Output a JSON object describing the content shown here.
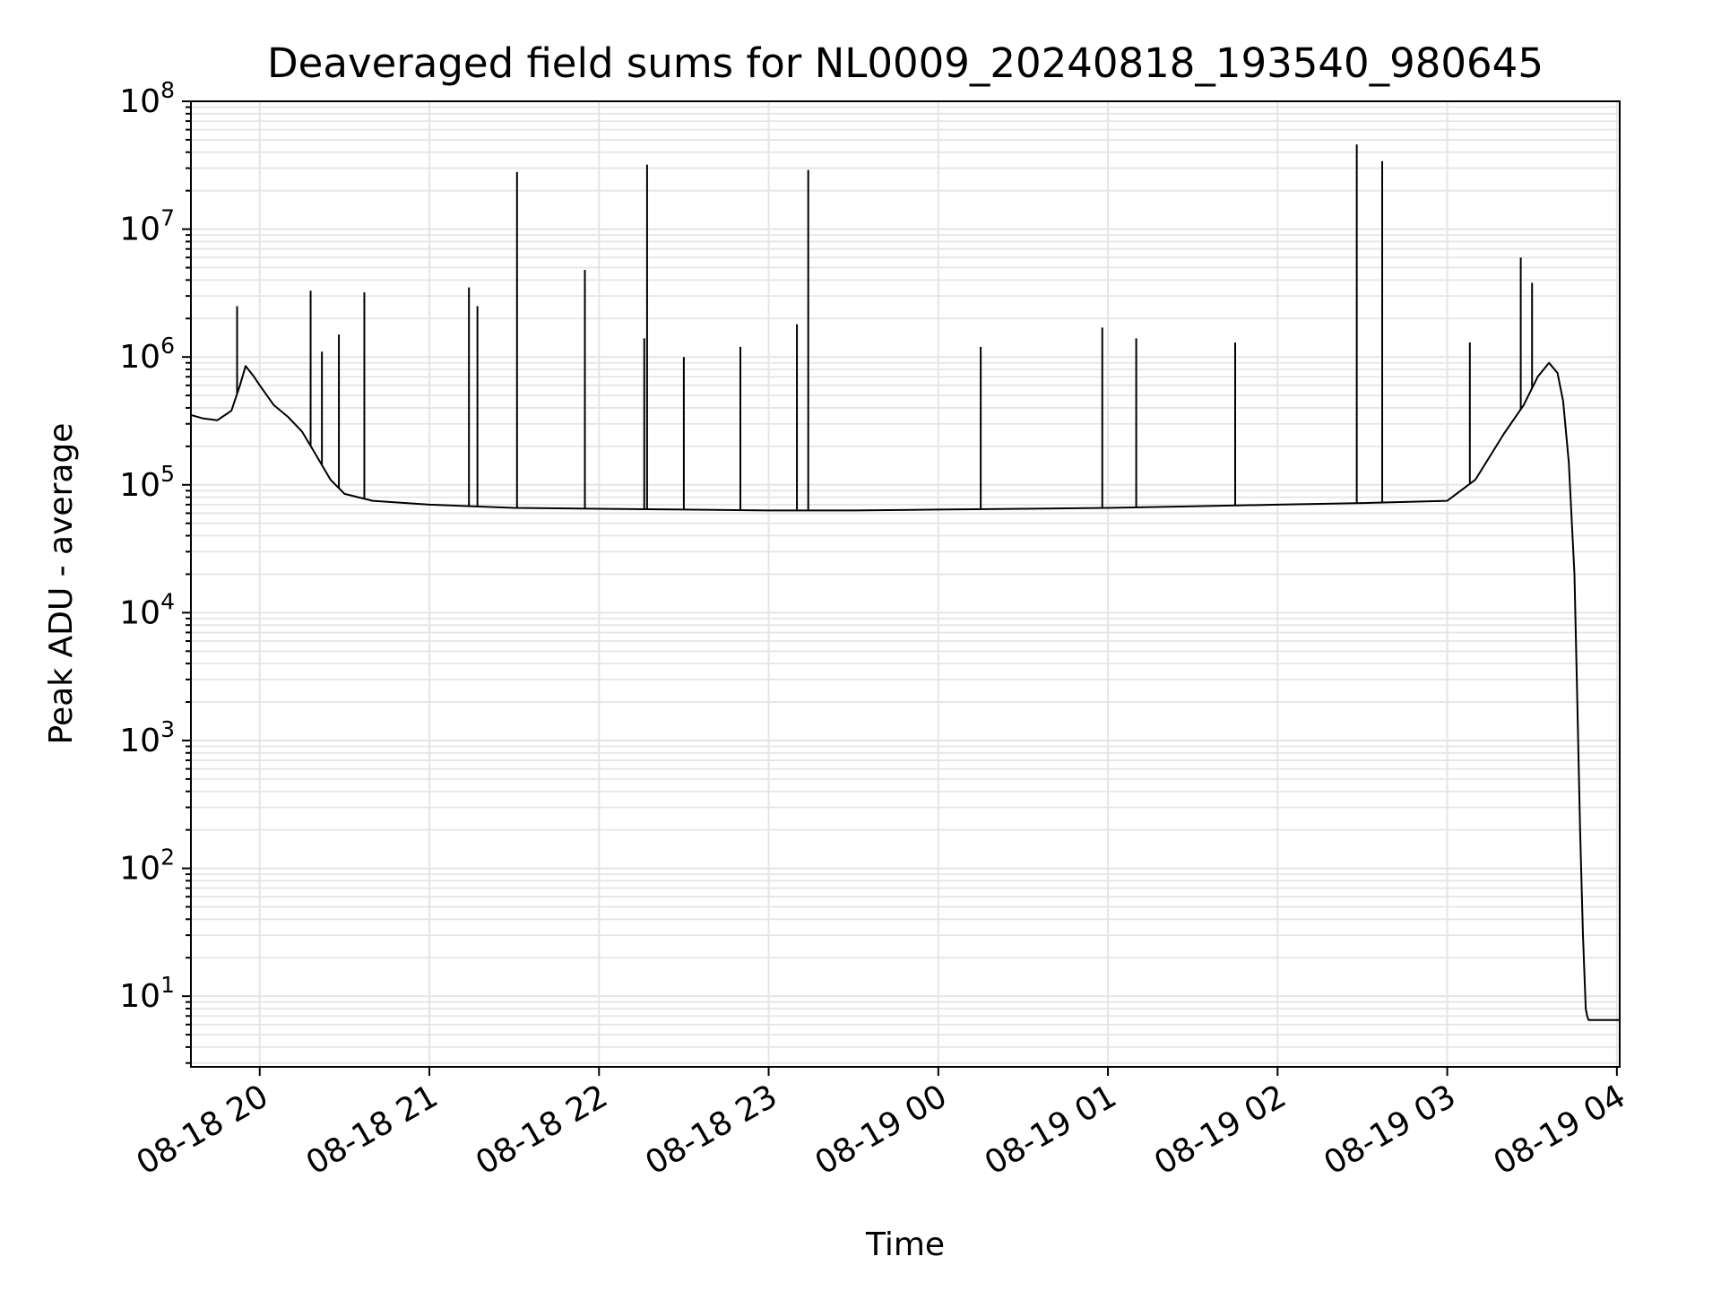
{
  "chart_data": {
    "type": "line",
    "title": "Deaveraged field sums for NL0009_20240818_193540_980645",
    "xlabel": "Time",
    "ylabel": "Peak ADU - average",
    "yscale": "log",
    "ylim": [
      2.8,
      100000000
    ],
    "xlim": [
      "2024-08-18 19:35:40",
      "2024-08-19 04:01:00"
    ],
    "grid": true,
    "line_color": "#000000",
    "grid_color": "#e5e5e5",
    "x_ticks": [
      {
        "value": "2024-08-18 20:00",
        "label": "08-18 20"
      },
      {
        "value": "2024-08-18 21:00",
        "label": "08-18 21"
      },
      {
        "value": "2024-08-18 22:00",
        "label": "08-18 22"
      },
      {
        "value": "2024-08-18 23:00",
        "label": "08-18 23"
      },
      {
        "value": "2024-08-19 00:00",
        "label": "08-19 00"
      },
      {
        "value": "2024-08-19 01:00",
        "label": "08-19 01"
      },
      {
        "value": "2024-08-19 02:00",
        "label": "08-19 02"
      },
      {
        "value": "2024-08-19 03:00",
        "label": "08-19 03"
      },
      {
        "value": "2024-08-19 04:00",
        "label": "08-19 04"
      }
    ],
    "y_ticks": [
      {
        "value": 10,
        "base": "10",
        "exp": "1"
      },
      {
        "value": 100,
        "base": "10",
        "exp": "2"
      },
      {
        "value": 1000,
        "base": "10",
        "exp": "3"
      },
      {
        "value": 10000,
        "base": "10",
        "exp": "4"
      },
      {
        "value": 100000,
        "base": "10",
        "exp": "5"
      },
      {
        "value": 1000000,
        "base": "10",
        "exp": "6"
      },
      {
        "value": 10000000,
        "base": "10",
        "exp": "7"
      },
      {
        "value": 100000000,
        "base": "10",
        "exp": "8"
      }
    ],
    "series": [
      {
        "x": [
          "2024-08-18 19:36",
          "2024-08-18 19:40",
          "2024-08-18 19:45",
          "2024-08-18 19:50",
          "2024-08-18 19:53",
          "2024-08-18 19:55",
          "2024-08-18 19:58",
          "2024-08-18 20:00",
          "2024-08-18 20:05",
          "2024-08-18 20:10",
          "2024-08-18 20:15",
          "2024-08-18 20:20",
          "2024-08-18 20:25",
          "2024-08-18 20:30",
          "2024-08-18 20:40",
          "2024-08-18 21:00",
          "2024-08-18 21:30",
          "2024-08-18 22:00",
          "2024-08-18 22:30",
          "2024-08-18 23:00",
          "2024-08-18 23:30",
          "2024-08-19 00:00",
          "2024-08-19 00:30",
          "2024-08-19 01:00",
          "2024-08-19 01:30",
          "2024-08-19 02:00",
          "2024-08-19 02:30",
          "2024-08-19 03:00",
          "2024-08-19 03:10",
          "2024-08-19 03:20",
          "2024-08-19 03:27",
          "2024-08-19 03:32",
          "2024-08-19 03:36",
          "2024-08-19 03:39",
          "2024-08-19 03:41",
          "2024-08-19 03:43",
          "2024-08-19 03:45",
          "2024-08-19 03:46",
          "2024-08-19 03:47",
          "2024-08-19 03:48",
          "2024-08-19 03:49",
          "2024-08-19 03:49:30",
          "2024-08-19 03:50",
          "2024-08-19 03:51",
          "2024-08-19 03:52",
          "2024-08-19 04:01"
        ],
        "y": [
          350000,
          330000,
          320000,
          380000,
          600000,
          850000,
          700000,
          600000,
          420000,
          340000,
          260000,
          170000,
          110000,
          85000,
          75000,
          70000,
          66000,
          65000,
          64000,
          63000,
          63000,
          64000,
          65000,
          66000,
          68000,
          70000,
          72000,
          75000,
          110000,
          250000,
          420000,
          700000,
          900000,
          750000,
          450000,
          150000,
          20000,
          2000,
          200,
          30,
          8,
          7,
          6.5,
          6.5,
          6.5,
          6.5
        ]
      }
    ],
    "spikes": [
      {
        "x": "2024-08-18 19:52",
        "y": 2500000
      },
      {
        "x": "2024-08-18 20:18",
        "y": 3300000
      },
      {
        "x": "2024-08-18 20:22",
        "y": 1100000
      },
      {
        "x": "2024-08-18 20:28",
        "y": 1500000
      },
      {
        "x": "2024-08-18 20:37",
        "y": 3200000
      },
      {
        "x": "2024-08-18 21:14",
        "y": 3500000
      },
      {
        "x": "2024-08-18 21:17",
        "y": 2500000
      },
      {
        "x": "2024-08-18 21:31",
        "y": 28000000
      },
      {
        "x": "2024-08-18 21:55",
        "y": 4800000
      },
      {
        "x": "2024-08-18 22:16",
        "y": 1400000
      },
      {
        "x": "2024-08-18 22:17",
        "y": 32000000
      },
      {
        "x": "2024-08-18 22:30",
        "y": 1000000
      },
      {
        "x": "2024-08-18 22:50",
        "y": 1200000
      },
      {
        "x": "2024-08-18 23:10",
        "y": 1800000
      },
      {
        "x": "2024-08-18 23:14",
        "y": 29000000
      },
      {
        "x": "2024-08-19 00:15",
        "y": 1200000
      },
      {
        "x": "2024-08-19 00:58",
        "y": 1700000
      },
      {
        "x": "2024-08-19 01:10",
        "y": 1400000
      },
      {
        "x": "2024-08-19 01:45",
        "y": 1300000
      },
      {
        "x": "2024-08-19 02:28",
        "y": 46000000
      },
      {
        "x": "2024-08-19 02:37",
        "y": 34000000
      },
      {
        "x": "2024-08-19 03:08",
        "y": 1300000
      },
      {
        "x": "2024-08-19 03:26",
        "y": 6000000
      },
      {
        "x": "2024-08-19 03:30",
        "y": 3800000
      }
    ]
  }
}
